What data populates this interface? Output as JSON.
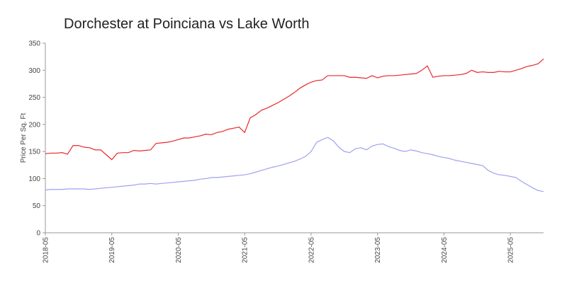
{
  "chart_data": {
    "type": "line",
    "title": "Dorchester at Poinciana vs Lake Worth",
    "y_label": "Price Per Sq. Ft",
    "categories": [
      "2018-05",
      null,
      null,
      null,
      null,
      null,
      null,
      null,
      null,
      null,
      null,
      null,
      "2019-05",
      null,
      null,
      null,
      null,
      null,
      null,
      null,
      null,
      null,
      null,
      null,
      "2020-05",
      null,
      null,
      null,
      null,
      null,
      null,
      null,
      null,
      null,
      null,
      null,
      "2021-05",
      null,
      null,
      null,
      null,
      null,
      null,
      null,
      null,
      null,
      null,
      null,
      "2022-05",
      null,
      null,
      null,
      null,
      null,
      null,
      null,
      null,
      null,
      null,
      null,
      "2023-05",
      null,
      null,
      null,
      null,
      null,
      null,
      null,
      null,
      null,
      null,
      null,
      "2024-05",
      null,
      null,
      null,
      null,
      null,
      null,
      null,
      null,
      null,
      null,
      null,
      "2025-05",
      null,
      null,
      null,
      null,
      null,
      null
    ],
    "series": [
      {
        "color": "#e8282b",
        "values": [
          146,
          147,
          147,
          148,
          145,
          161,
          161,
          158,
          157,
          153,
          153,
          144,
          135,
          147,
          148,
          148,
          152,
          151,
          152,
          153,
          165,
          166,
          167,
          169,
          172,
          175,
          175,
          177,
          179,
          182,
          181,
          185,
          187,
          191,
          193,
          195,
          185,
          212,
          218,
          226,
          230,
          235,
          240,
          246,
          252,
          259,
          267,
          273,
          278,
          281,
          282,
          290,
          290,
          290,
          290,
          287,
          287,
          286,
          285,
          290,
          286,
          289,
          290,
          290,
          291,
          292,
          293,
          294,
          300,
          308,
          287,
          289,
          290,
          290,
          291,
          292,
          294,
          300,
          296,
          297,
          296,
          296,
          298,
          297,
          297,
          300,
          303,
          307,
          309,
          312,
          321
        ]
      },
      {
        "color": "#a0a0f0",
        "values": [
          79,
          80,
          80,
          80,
          81,
          81,
          81,
          81,
          80,
          81,
          82,
          83,
          84,
          85,
          86,
          87,
          88,
          90,
          90,
          91,
          90,
          91,
          92,
          93,
          94,
          95,
          96,
          97,
          99,
          100,
          102,
          102,
          103,
          104,
          105,
          106,
          107,
          109,
          112,
          115,
          118,
          121,
          123,
          126,
          129,
          132,
          136,
          141,
          150,
          167,
          172,
          176,
          170,
          158,
          150,
          148,
          155,
          157,
          153,
          160,
          163,
          164,
          159,
          156,
          152,
          150,
          153,
          151,
          148,
          146,
          144,
          141,
          139,
          137,
          134,
          132,
          130,
          128,
          126,
          124,
          115,
          110,
          107,
          106,
          104,
          102,
          95,
          89,
          83,
          78,
          76
        ]
      }
    ],
    "ylim": [
      0,
      350
    ],
    "yticks": [
      0,
      50,
      100,
      150,
      200,
      250,
      300,
      350
    ]
  }
}
